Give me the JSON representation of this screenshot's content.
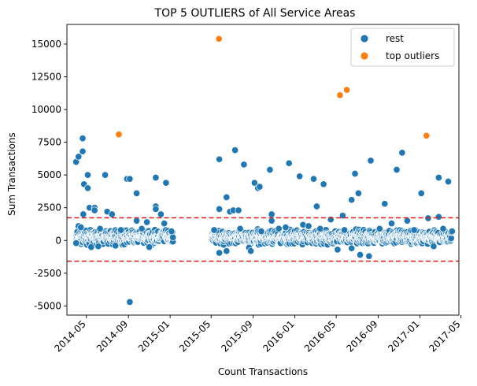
{
  "chart_data": {
    "type": "scatter",
    "title": "TOP 5 OUTLIERS of All Service Areas",
    "xlabel": "Count Transactions",
    "ylabel": "Sum Transactions",
    "xlim": [
      "2014-03-05",
      "2017-04-25"
    ],
    "ylim": [
      -5700,
      16500
    ],
    "x_ticks": [
      "2014-05",
      "2014-09",
      "2015-01",
      "2015-05",
      "2015-09",
      "2016-01",
      "2016-05",
      "2016-09",
      "2017-01",
      "2017-05"
    ],
    "y_ticks": [
      -5000,
      -2500,
      0,
      2500,
      5000,
      7500,
      10000,
      12500,
      15000
    ],
    "thresholds": [
      1730,
      -1580
    ],
    "threshold_color": "#e31a1c",
    "legend_position": "top-right",
    "series": [
      {
        "name": "rest",
        "color": "#1f77b4",
        "points": [
          [
            "2014-04-01",
            6000
          ],
          [
            "2014-04-08",
            6400
          ],
          [
            "2014-04-20",
            6800
          ],
          [
            "2014-04-20",
            7800
          ],
          [
            "2014-04-24",
            4300
          ],
          [
            "2014-05-05",
            5000
          ],
          [
            "2014-05-05",
            4000
          ],
          [
            "2014-04-22",
            2000
          ],
          [
            "2014-05-10",
            2500
          ],
          [
            "2014-05-25",
            2500
          ],
          [
            "2014-05-25",
            2300
          ],
          [
            "2014-06-25",
            5000
          ],
          [
            "2014-07-01",
            2200
          ],
          [
            "2014-07-15",
            2000
          ],
          [
            "2014-08-28",
            4700
          ],
          [
            "2014-09-05",
            4700
          ],
          [
            "2014-09-25",
            3600
          ],
          [
            "2014-11-20",
            4800
          ],
          [
            "2014-11-20",
            2600
          ],
          [
            "2014-11-20",
            2400
          ],
          [
            "2014-12-05",
            2000
          ],
          [
            "2014-12-20",
            4400
          ],
          [
            "2014-09-05",
            -4700
          ],
          [
            "2014-09-25",
            1500
          ],
          [
            "2014-10-25",
            1400
          ],
          [
            "2014-04-08",
            1100
          ],
          [
            "2014-04-15",
            1000
          ],
          [
            "2014-05-15",
            -500
          ],
          [
            "2014-06-05",
            -450
          ],
          [
            "2014-07-25",
            -400
          ],
          [
            "2014-11-01",
            -500
          ],
          [
            "2014-12-15",
            1300
          ],
          [
            "2015-05-25",
            6200
          ],
          [
            "2015-05-25",
            2400
          ],
          [
            "2015-05-25",
            -950
          ],
          [
            "2015-06-15",
            3300
          ],
          [
            "2015-06-25",
            2200
          ],
          [
            "2015-07-05",
            2300
          ],
          [
            "2015-07-20",
            2300
          ],
          [
            "2015-07-10",
            6900
          ],
          [
            "2015-08-05",
            5800
          ],
          [
            "2015-08-20",
            -550
          ],
          [
            "2015-09-05",
            4400
          ],
          [
            "2015-09-15",
            4000
          ],
          [
            "2015-09-20",
            4100
          ],
          [
            "2015-10-20",
            5400
          ],
          [
            "2015-10-25",
            2000
          ],
          [
            "2015-10-25",
            1500
          ],
          [
            "2015-06-15",
            -800
          ],
          [
            "2015-08-25",
            -800
          ],
          [
            "2015-12-15",
            5900
          ],
          [
            "2016-01-15",
            4900
          ],
          [
            "2016-02-25",
            4700
          ],
          [
            "2016-03-05",
            2600
          ],
          [
            "2016-03-25",
            4300
          ],
          [
            "2016-05-20",
            1900
          ],
          [
            "2016-06-15",
            3100
          ],
          [
            "2016-06-25",
            5100
          ],
          [
            "2016-07-05",
            3600
          ],
          [
            "2016-08-10",
            6100
          ],
          [
            "2016-07-10",
            -1100
          ],
          [
            "2016-08-05",
            -1200
          ],
          [
            "2016-05-05",
            -700
          ],
          [
            "2016-06-15",
            -600
          ],
          [
            "2016-09-20",
            2800
          ],
          [
            "2016-10-25",
            5400
          ],
          [
            "2016-11-10",
            6700
          ],
          [
            "2017-01-05",
            3600
          ],
          [
            "2017-02-25",
            4800
          ],
          [
            "2017-03-25",
            4500
          ],
          [
            "2017-02-25",
            1800
          ],
          [
            "2017-02-10",
            -450
          ],
          [
            "2017-01-25",
            1700
          ],
          [
            "2016-11-25",
            1500
          ],
          [
            "2016-10-10",
            1300
          ],
          [
            "2016-04-15",
            1600
          ],
          [
            "2016-01-25",
            1200
          ],
          [
            "2015-12-05",
            1000
          ],
          [
            "2015-11-15",
            900
          ],
          [
            "2016-02-10",
            1100
          ],
          [
            "2014-04-01",
            -200
          ],
          [
            "2014-06-10",
            900
          ],
          [
            "2014-08-10",
            800
          ],
          [
            "2014-10-10",
            900
          ],
          [
            "2015-01-05",
            700
          ],
          [
            "2015-05-10",
            800
          ],
          [
            "2015-07-25",
            900
          ],
          [
            "2015-09-25",
            700
          ],
          [
            "2016-03-15",
            900
          ],
          [
            "2016-05-25",
            800
          ],
          [
            "2016-09-05",
            900
          ],
          [
            "2016-12-15",
            800
          ],
          [
            "2017-03-10",
            900
          ],
          [
            "2017-04-05",
            700
          ]
        ]
      },
      {
        "name": "top outliers",
        "color": "#ff7f0e",
        "points": [
          [
            "2015-05-24",
            15400
          ],
          [
            "2014-08-04",
            8100
          ],
          [
            "2016-05-12",
            11100
          ],
          [
            "2016-06-01",
            11500
          ],
          [
            "2017-01-20",
            8000
          ]
        ]
      }
    ],
    "dense_band": {
      "segments": [
        [
          "2014-04-01",
          "2015-01-10"
        ],
        [
          "2015-05-01",
          "2017-04-03"
        ]
      ],
      "center": 250,
      "spread": 420
    }
  }
}
